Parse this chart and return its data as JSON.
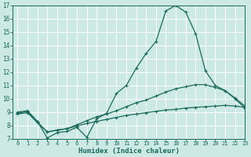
{
  "xlabel": "Humidex (Indice chaleur)",
  "ylabel": "",
  "xlim": [
    -0.5,
    23
  ],
  "ylim": [
    7,
    17
  ],
  "yticks": [
    7,
    8,
    9,
    10,
    11,
    12,
    13,
    14,
    15,
    16,
    17
  ],
  "xticks": [
    0,
    1,
    2,
    3,
    4,
    5,
    6,
    7,
    8,
    9,
    10,
    11,
    12,
    13,
    14,
    15,
    16,
    17,
    18,
    19,
    20,
    21,
    22,
    23
  ],
  "bg_color": "#cce9e4",
  "grid_color": "#ffffff",
  "line_color": "#1a6b5a",
  "line1_x": [
    0,
    1,
    2,
    3,
    4,
    5,
    6,
    7,
    8,
    9,
    10,
    11,
    12,
    13,
    14,
    15,
    16,
    17,
    18,
    19,
    20,
    21,
    22,
    23
  ],
  "line1_y": [
    9.0,
    9.1,
    8.3,
    7.05,
    7.45,
    7.55,
    7.85,
    7.1,
    8.5,
    8.9,
    10.4,
    11.0,
    12.3,
    13.4,
    14.3,
    16.6,
    17.0,
    16.5,
    14.9,
    12.1,
    11.0,
    10.6,
    10.0,
    9.3
  ],
  "line2_x": [
    0,
    1,
    2,
    3,
    4,
    5,
    6,
    7,
    8,
    9,
    10,
    11,
    12,
    13,
    14,
    15,
    16,
    17,
    18,
    19,
    20,
    21,
    22,
    23
  ],
  "line2_y": [
    8.9,
    9.05,
    8.25,
    7.5,
    7.65,
    7.75,
    8.05,
    8.35,
    8.65,
    8.85,
    9.1,
    9.4,
    9.7,
    9.9,
    10.2,
    10.5,
    10.75,
    10.9,
    11.05,
    11.05,
    10.85,
    10.6,
    10.05,
    9.45
  ],
  "line3_x": [
    0,
    1,
    2,
    3,
    4,
    5,
    6,
    7,
    8,
    9,
    10,
    11,
    12,
    13,
    14,
    15,
    16,
    17,
    18,
    19,
    20,
    21,
    22,
    23
  ],
  "line3_y": [
    8.85,
    8.95,
    8.2,
    7.5,
    7.65,
    7.75,
    7.95,
    8.15,
    8.3,
    8.45,
    8.6,
    8.75,
    8.85,
    8.95,
    9.05,
    9.15,
    9.2,
    9.3,
    9.35,
    9.4,
    9.45,
    9.5,
    9.45,
    9.35
  ]
}
